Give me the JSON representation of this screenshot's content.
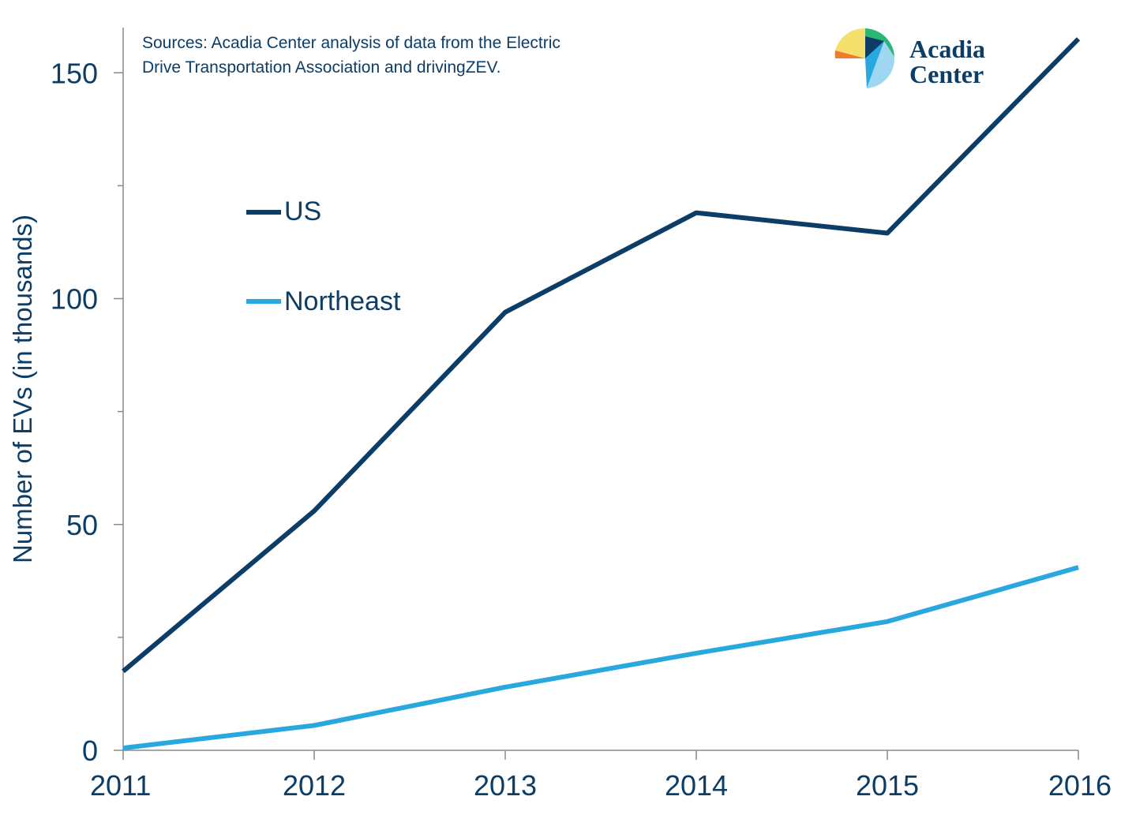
{
  "chart_data": {
    "type": "line",
    "x": [
      "2011",
      "2012",
      "2013",
      "2014",
      "2015",
      "2016"
    ],
    "series": [
      {
        "name": "US",
        "values": [
          17.5,
          53,
          97,
          119,
          114.5,
          157.5
        ],
        "color": "#0b3d66"
      },
      {
        "name": "Northeast",
        "values": [
          0.5,
          5.5,
          14,
          21.5,
          28.5,
          40.5
        ],
        "color": "#29a8e0"
      }
    ],
    "ylabel": "Number of EVs (in thousands)",
    "xlabel": "",
    "ylim": [
      0,
      160
    ],
    "yticks_major": [
      0,
      50,
      100,
      150
    ],
    "yticks_minor": [
      25,
      75,
      125
    ],
    "grid": false,
    "legend": "upper-left",
    "source_lines": [
      "Sources: Acadia Center analysis of data from the Electric",
      "Drive Transportation Association and drivingZEV."
    ]
  },
  "logo": {
    "line1": "Acadia",
    "line2": "Center",
    "colors": [
      "#f5e06e",
      "#f07c2a",
      "#2bb673",
      "#0b3d66",
      "#29a8e0",
      "#9fd6f2"
    ]
  }
}
